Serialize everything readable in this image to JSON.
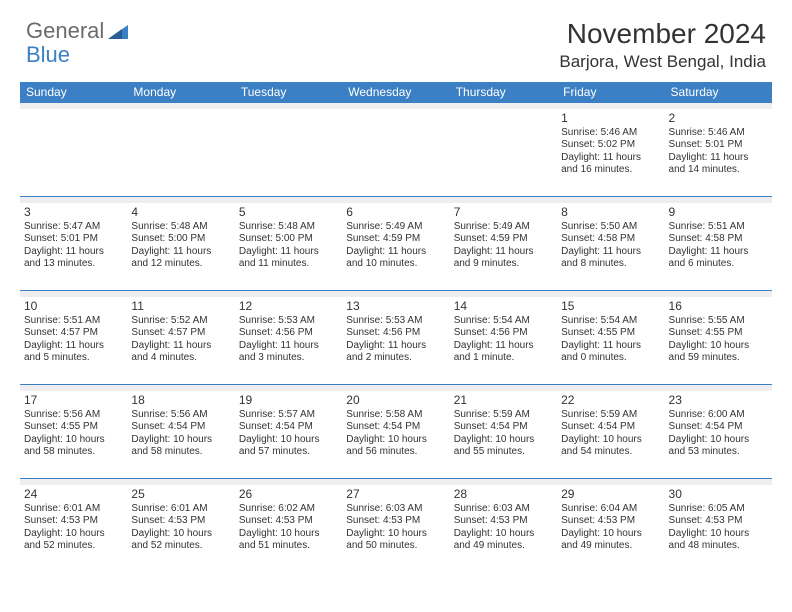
{
  "logo": {
    "text_a": "General",
    "text_b": "Blue"
  },
  "header": {
    "month_title": "November 2024",
    "location": "Barjora, West Bengal, India"
  },
  "colors": {
    "header_bg": "#3b7fc4",
    "header_text": "#ffffff",
    "sep_bg": "#eeeeee",
    "sep_border": "#3b7fc4",
    "body_text": "#333333",
    "logo_gray": "#6b6b6b",
    "logo_blue": "#3b7fc4",
    "page_bg": "#ffffff"
  },
  "day_headers": [
    "Sunday",
    "Monday",
    "Tuesday",
    "Wednesday",
    "Thursday",
    "Friday",
    "Saturday"
  ],
  "weeks": [
    [
      null,
      null,
      null,
      null,
      null,
      {
        "n": "1",
        "sr": "Sunrise: 5:46 AM",
        "ss": "Sunset: 5:02 PM",
        "d1": "Daylight: 11 hours",
        "d2": "and 16 minutes."
      },
      {
        "n": "2",
        "sr": "Sunrise: 5:46 AM",
        "ss": "Sunset: 5:01 PM",
        "d1": "Daylight: 11 hours",
        "d2": "and 14 minutes."
      }
    ],
    [
      {
        "n": "3",
        "sr": "Sunrise: 5:47 AM",
        "ss": "Sunset: 5:01 PM",
        "d1": "Daylight: 11 hours",
        "d2": "and 13 minutes."
      },
      {
        "n": "4",
        "sr": "Sunrise: 5:48 AM",
        "ss": "Sunset: 5:00 PM",
        "d1": "Daylight: 11 hours",
        "d2": "and 12 minutes."
      },
      {
        "n": "5",
        "sr": "Sunrise: 5:48 AM",
        "ss": "Sunset: 5:00 PM",
        "d1": "Daylight: 11 hours",
        "d2": "and 11 minutes."
      },
      {
        "n": "6",
        "sr": "Sunrise: 5:49 AM",
        "ss": "Sunset: 4:59 PM",
        "d1": "Daylight: 11 hours",
        "d2": "and 10 minutes."
      },
      {
        "n": "7",
        "sr": "Sunrise: 5:49 AM",
        "ss": "Sunset: 4:59 PM",
        "d1": "Daylight: 11 hours",
        "d2": "and 9 minutes."
      },
      {
        "n": "8",
        "sr": "Sunrise: 5:50 AM",
        "ss": "Sunset: 4:58 PM",
        "d1": "Daylight: 11 hours",
        "d2": "and 8 minutes."
      },
      {
        "n": "9",
        "sr": "Sunrise: 5:51 AM",
        "ss": "Sunset: 4:58 PM",
        "d1": "Daylight: 11 hours",
        "d2": "and 6 minutes."
      }
    ],
    [
      {
        "n": "10",
        "sr": "Sunrise: 5:51 AM",
        "ss": "Sunset: 4:57 PM",
        "d1": "Daylight: 11 hours",
        "d2": "and 5 minutes."
      },
      {
        "n": "11",
        "sr": "Sunrise: 5:52 AM",
        "ss": "Sunset: 4:57 PM",
        "d1": "Daylight: 11 hours",
        "d2": "and 4 minutes."
      },
      {
        "n": "12",
        "sr": "Sunrise: 5:53 AM",
        "ss": "Sunset: 4:56 PM",
        "d1": "Daylight: 11 hours",
        "d2": "and 3 minutes."
      },
      {
        "n": "13",
        "sr": "Sunrise: 5:53 AM",
        "ss": "Sunset: 4:56 PM",
        "d1": "Daylight: 11 hours",
        "d2": "and 2 minutes."
      },
      {
        "n": "14",
        "sr": "Sunrise: 5:54 AM",
        "ss": "Sunset: 4:56 PM",
        "d1": "Daylight: 11 hours",
        "d2": "and 1 minute."
      },
      {
        "n": "15",
        "sr": "Sunrise: 5:54 AM",
        "ss": "Sunset: 4:55 PM",
        "d1": "Daylight: 11 hours",
        "d2": "and 0 minutes."
      },
      {
        "n": "16",
        "sr": "Sunrise: 5:55 AM",
        "ss": "Sunset: 4:55 PM",
        "d1": "Daylight: 10 hours",
        "d2": "and 59 minutes."
      }
    ],
    [
      {
        "n": "17",
        "sr": "Sunrise: 5:56 AM",
        "ss": "Sunset: 4:55 PM",
        "d1": "Daylight: 10 hours",
        "d2": "and 58 minutes."
      },
      {
        "n": "18",
        "sr": "Sunrise: 5:56 AM",
        "ss": "Sunset: 4:54 PM",
        "d1": "Daylight: 10 hours",
        "d2": "and 58 minutes."
      },
      {
        "n": "19",
        "sr": "Sunrise: 5:57 AM",
        "ss": "Sunset: 4:54 PM",
        "d1": "Daylight: 10 hours",
        "d2": "and 57 minutes."
      },
      {
        "n": "20",
        "sr": "Sunrise: 5:58 AM",
        "ss": "Sunset: 4:54 PM",
        "d1": "Daylight: 10 hours",
        "d2": "and 56 minutes."
      },
      {
        "n": "21",
        "sr": "Sunrise: 5:59 AM",
        "ss": "Sunset: 4:54 PM",
        "d1": "Daylight: 10 hours",
        "d2": "and 55 minutes."
      },
      {
        "n": "22",
        "sr": "Sunrise: 5:59 AM",
        "ss": "Sunset: 4:54 PM",
        "d1": "Daylight: 10 hours",
        "d2": "and 54 minutes."
      },
      {
        "n": "23",
        "sr": "Sunrise: 6:00 AM",
        "ss": "Sunset: 4:54 PM",
        "d1": "Daylight: 10 hours",
        "d2": "and 53 minutes."
      }
    ],
    [
      {
        "n": "24",
        "sr": "Sunrise: 6:01 AM",
        "ss": "Sunset: 4:53 PM",
        "d1": "Daylight: 10 hours",
        "d2": "and 52 minutes."
      },
      {
        "n": "25",
        "sr": "Sunrise: 6:01 AM",
        "ss": "Sunset: 4:53 PM",
        "d1": "Daylight: 10 hours",
        "d2": "and 52 minutes."
      },
      {
        "n": "26",
        "sr": "Sunrise: 6:02 AM",
        "ss": "Sunset: 4:53 PM",
        "d1": "Daylight: 10 hours",
        "d2": "and 51 minutes."
      },
      {
        "n": "27",
        "sr": "Sunrise: 6:03 AM",
        "ss": "Sunset: 4:53 PM",
        "d1": "Daylight: 10 hours",
        "d2": "and 50 minutes."
      },
      {
        "n": "28",
        "sr": "Sunrise: 6:03 AM",
        "ss": "Sunset: 4:53 PM",
        "d1": "Daylight: 10 hours",
        "d2": "and 49 minutes."
      },
      {
        "n": "29",
        "sr": "Sunrise: 6:04 AM",
        "ss": "Sunset: 4:53 PM",
        "d1": "Daylight: 10 hours",
        "d2": "and 49 minutes."
      },
      {
        "n": "30",
        "sr": "Sunrise: 6:05 AM",
        "ss": "Sunset: 4:53 PM",
        "d1": "Daylight: 10 hours",
        "d2": "and 48 minutes."
      }
    ]
  ]
}
